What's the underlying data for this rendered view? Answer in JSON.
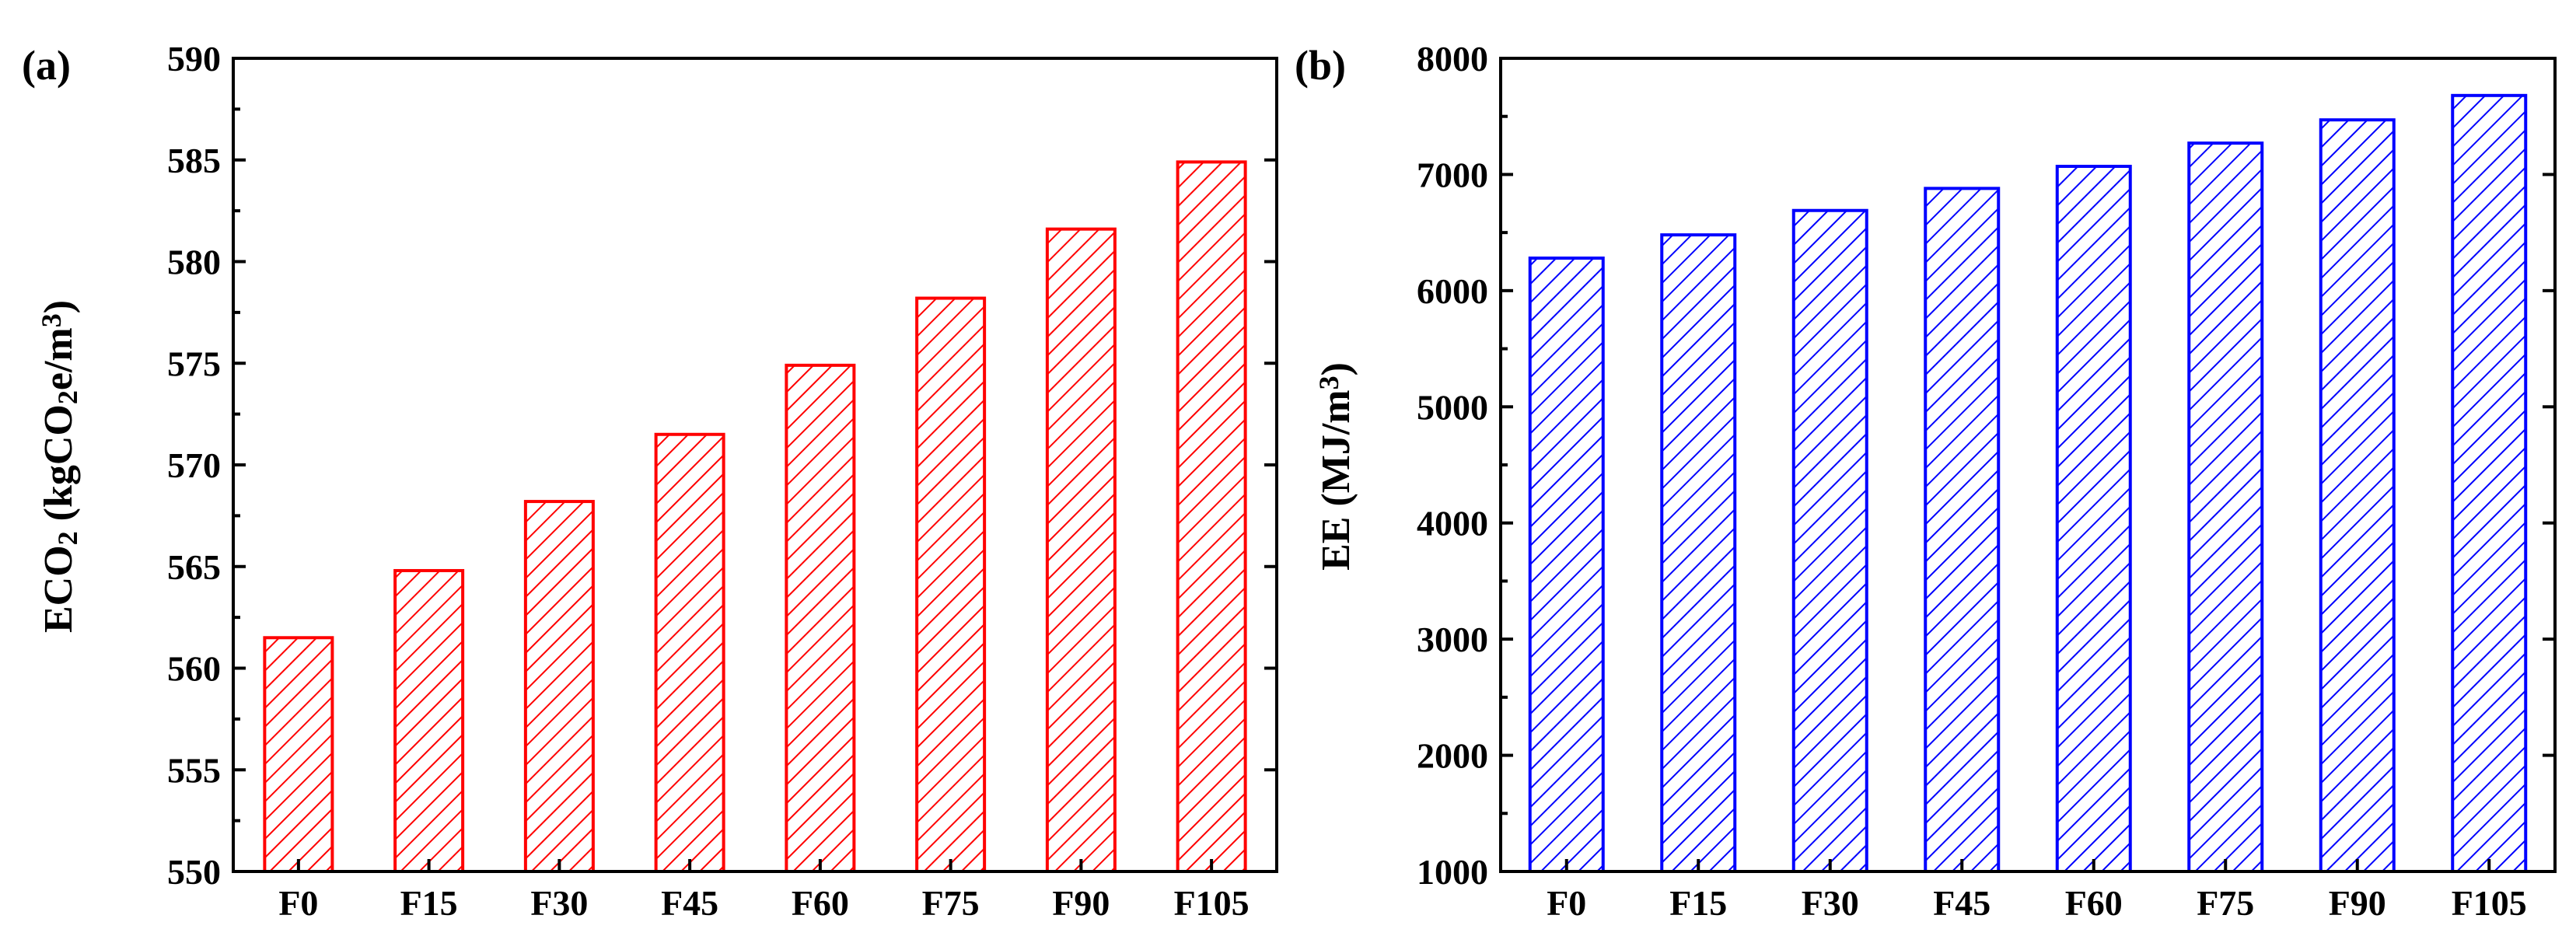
{
  "chart_data": [
    {
      "type": "bar",
      "panel_label": "(a)",
      "title": "",
      "xlabel": "",
      "ylabel": {
        "parts": [
          {
            "text": "ECO",
            "sub": false,
            "sup": false
          },
          {
            "text": "2",
            "sub": true,
            "sup": false
          },
          {
            "text": " (kgCO",
            "sub": false,
            "sup": false
          },
          {
            "text": "2",
            "sub": true,
            "sup": false
          },
          {
            "text": "e/m",
            "sub": false,
            "sup": false
          },
          {
            "text": "3",
            "sub": false,
            "sup": true
          },
          {
            "text": ")",
            "sub": false,
            "sup": false
          }
        ]
      },
      "categories": [
        "F0",
        "F15",
        "F30",
        "F45",
        "F60",
        "F75",
        "F90",
        "F105"
      ],
      "values": [
        561.5,
        564.8,
        568.2,
        571.5,
        574.9,
        578.2,
        581.6,
        584.9
      ],
      "ylim": [
        550,
        590
      ],
      "yticks": [
        550,
        555,
        560,
        565,
        570,
        575,
        580,
        585,
        590
      ],
      "color": "#ff0000",
      "pattern": "diagonal-hatch",
      "grid": false,
      "legend": "none"
    },
    {
      "type": "bar",
      "panel_label": "(b)",
      "title": "",
      "xlabel": "",
      "ylabel": {
        "parts": [
          {
            "text": "EE (MJ/m",
            "sub": false,
            "sup": false
          },
          {
            "text": "3",
            "sub": false,
            "sup": true
          },
          {
            "text": ")",
            "sub": false,
            "sup": false
          }
        ]
      },
      "categories": [
        "F0",
        "F15",
        "F30",
        "F45",
        "F60",
        "F75",
        "F90",
        "F105"
      ],
      "values": [
        6280,
        6480,
        6690,
        6880,
        7070,
        7270,
        7470,
        7680
      ],
      "ylim": [
        1000,
        8000
      ],
      "yticks": [
        1000,
        2000,
        3000,
        4000,
        5000,
        6000,
        7000,
        8000
      ],
      "color": "#0000ff",
      "pattern": "diagonal-hatch",
      "grid": false,
      "legend": "none"
    }
  ]
}
